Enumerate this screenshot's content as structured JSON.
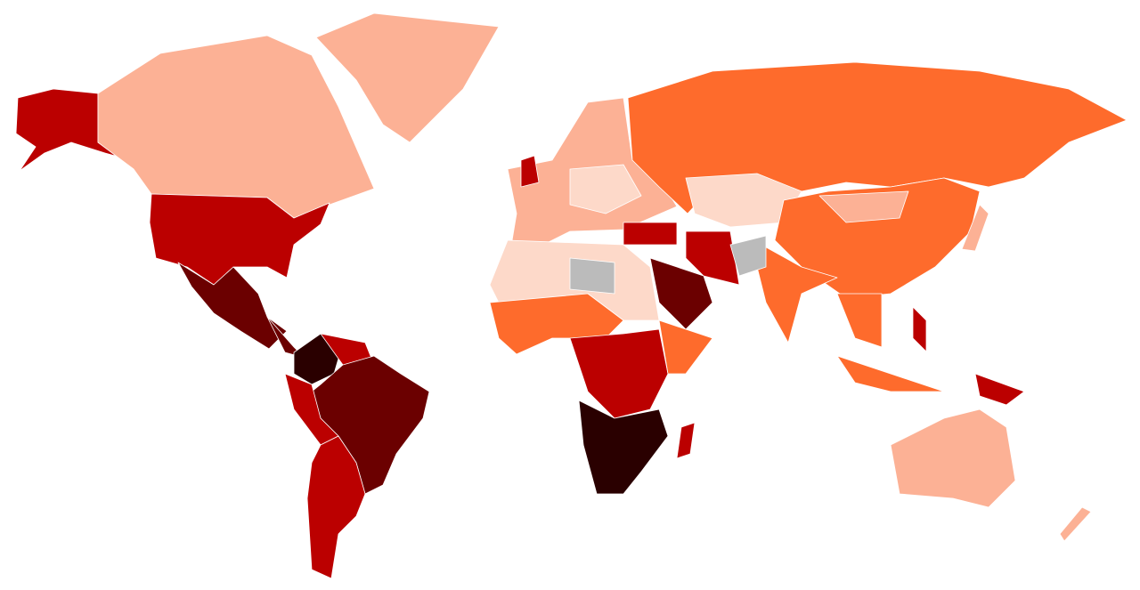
{
  "map": {
    "colors": [
      "#fdd9c9",
      "#fcb195",
      "#fe6b2c",
      "#bb0000",
      "#6b0000",
      "#2a0000",
      "#bbbbbb"
    ]
  }
}
